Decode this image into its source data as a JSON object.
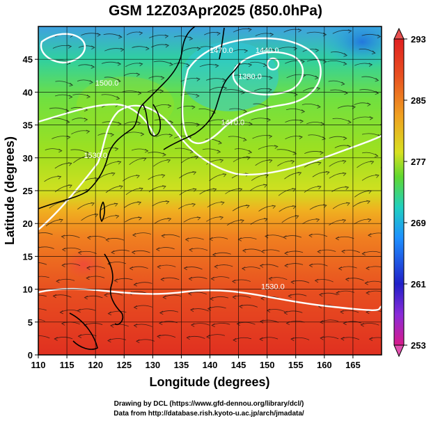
{
  "title": "GSM 12Z03Apr2025 (850.0hPa)",
  "map": {
    "lon_range": [
      110,
      170
    ],
    "lat_range": [
      0,
      50
    ],
    "xlabel": "Longitude (degrees)",
    "ylabel": "Latitude  (degrees)",
    "x_ticks": [
      110,
      115,
      120,
      125,
      130,
      135,
      140,
      145,
      150,
      155,
      160,
      165
    ],
    "y_ticks": [
      0,
      5,
      10,
      15,
      20,
      25,
      30,
      35,
      40,
      45
    ],
    "grid": true,
    "shaded_field": "temperature",
    "overlays": [
      "streamlines",
      "geopotential height contours",
      "coastlines"
    ]
  },
  "colorbar": {
    "min": 253,
    "max": 293,
    "labels": [
      "293",
      "285",
      "277",
      "269",
      "261",
      "253"
    ],
    "colors": [
      "#d81b8a",
      "#8a2bd8",
      "#2020c8",
      "#1e90ff",
      "#20d0e0",
      "#30d080",
      "#80e020",
      "#d8e020",
      "#f0a020",
      "#e85020",
      "#e02020"
    ]
  },
  "contours": [
    {
      "label": "1530.0",
      "lon": 120,
      "lat": 30
    },
    {
      "label": "1440.0",
      "lon": 150,
      "lat": 46
    },
    {
      "label": "1380.0",
      "lon": 147,
      "lat": 42
    },
    {
      "label": "1500.0",
      "lon": 122,
      "lat": 41
    },
    {
      "label": "1470.0",
      "lon": 142,
      "lat": 46
    },
    {
      "label": "1470.0",
      "lon": 144,
      "lat": 35
    },
    {
      "label": "1530.0",
      "lon": 151,
      "lat": 10
    }
  ],
  "credits": {
    "line1": "Drawing by DCL (https://www.gfd-dennou.org/library/dcl/)",
    "line2": "Data from http://database.rish.kyoto-u.ac.jp/arch/jmadata/"
  }
}
